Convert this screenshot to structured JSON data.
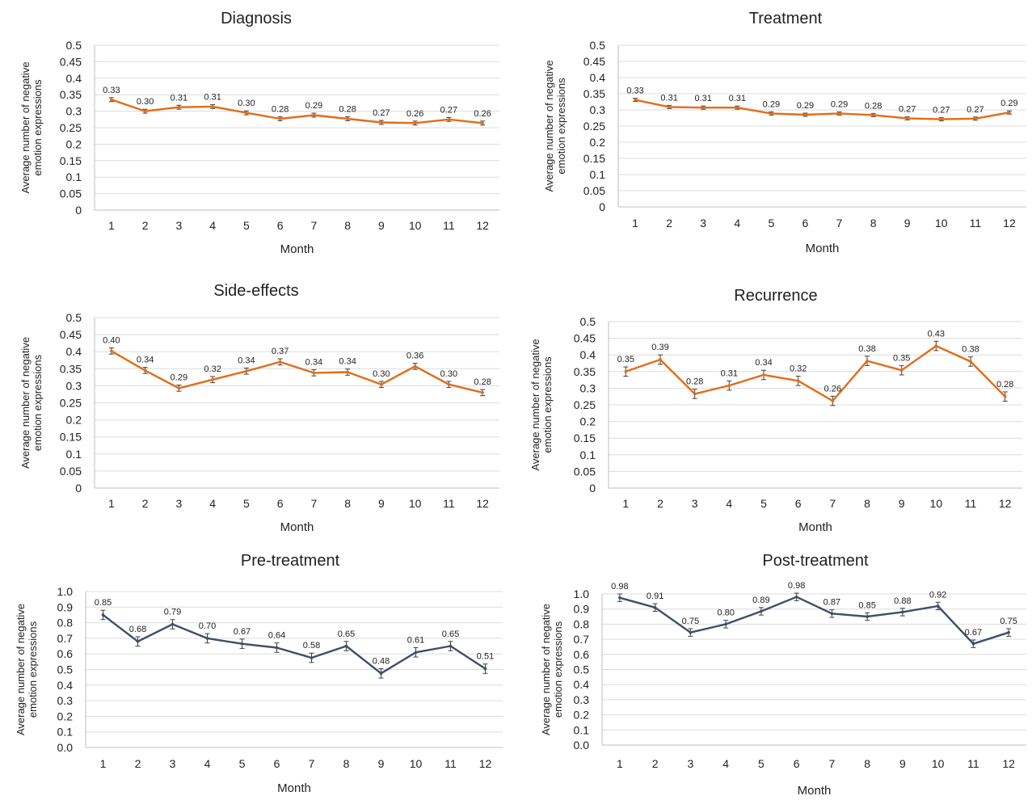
{
  "figure": {
    "y_axis_label_line1": "Average number of negative",
    "y_axis_label_line2": "emotion expressions",
    "x_axis_label": "Month"
  },
  "chart_data": [
    {
      "type": "line",
      "title": "Diagnosis",
      "xlabel": "Month",
      "ylabel": "Average number of negative emotion expressions",
      "x": [
        1,
        2,
        3,
        4,
        5,
        6,
        7,
        8,
        9,
        10,
        11,
        12
      ],
      "values": [
        0.335,
        0.3,
        0.312,
        0.314,
        0.295,
        0.277,
        0.288,
        0.277,
        0.266,
        0.264,
        0.275,
        0.264
      ],
      "data_labels": [
        "0.33",
        "0.30",
        "0.31",
        "0.31",
        "0.30",
        "0.28",
        "0.29",
        "0.28",
        "0.27",
        "0.26",
        "0.27",
        "0.26"
      ],
      "error": 0.006,
      "ylim": [
        0,
        0.5
      ],
      "yticks": [
        "0",
        "0.05",
        "0.1",
        "0.15",
        "0.2",
        "0.25",
        "0.3",
        "0.35",
        "0.4",
        "0.45",
        "0.5"
      ],
      "color": "#e36c17",
      "grid": true
    },
    {
      "type": "line",
      "title": "Treatment",
      "xlabel": "Month",
      "ylabel": "Average number of negative emotion expressions",
      "x": [
        1,
        2,
        3,
        4,
        5,
        6,
        7,
        8,
        9,
        10,
        11,
        12
      ],
      "values": [
        0.331,
        0.309,
        0.307,
        0.307,
        0.289,
        0.285,
        0.289,
        0.284,
        0.274,
        0.271,
        0.273,
        0.292
      ],
      "data_labels": [
        "0.33",
        "0.31",
        "0.31",
        "0.31",
        "0.29",
        "0.29",
        "0.29",
        "0.28",
        "0.27",
        "0.27",
        "0.27",
        "0.29"
      ],
      "error": 0.005,
      "ylim": [
        0,
        0.5
      ],
      "yticks": [
        "0",
        "0.05",
        "0.1",
        "0.15",
        "0.2",
        "0.25",
        "0.3",
        "0.35",
        "0.4",
        "0.45",
        "0.5"
      ],
      "color": "#e36c17",
      "grid": true
    },
    {
      "type": "line",
      "title": "Side-effects",
      "xlabel": "Month",
      "ylabel": "Average number of negative emotion expressions",
      "x": [
        1,
        2,
        3,
        4,
        5,
        6,
        7,
        8,
        9,
        10,
        11,
        12
      ],
      "values": [
        0.402,
        0.345,
        0.293,
        0.318,
        0.343,
        0.37,
        0.338,
        0.34,
        0.304,
        0.357,
        0.304,
        0.28
      ],
      "data_labels": [
        "0.40",
        "0.34",
        "0.29",
        "0.32",
        "0.34",
        "0.37",
        "0.34",
        "0.34",
        "0.30",
        "0.36",
        "0.30",
        "0.28"
      ],
      "error": 0.009,
      "ylim": [
        0,
        0.5
      ],
      "yticks": [
        "0",
        "0.05",
        "0.1",
        "0.15",
        "0.2",
        "0.25",
        "0.3",
        "0.35",
        "0.4",
        "0.45",
        "0.5"
      ],
      "color": "#e36c17",
      "grid": true
    },
    {
      "type": "line",
      "title": "Recurrence",
      "xlabel": "Month",
      "ylabel": "Average number of negative emotion expressions",
      "x": [
        1,
        2,
        3,
        4,
        5,
        6,
        7,
        8,
        9,
        10,
        11,
        12
      ],
      "values": [
        0.35,
        0.386,
        0.283,
        0.308,
        0.34,
        0.322,
        0.262,
        0.382,
        0.354,
        0.427,
        0.38,
        0.275
      ],
      "data_labels": [
        "0.35",
        "0.39",
        "0.28",
        "0.31",
        "0.34",
        "0.32",
        "0.26",
        "0.38",
        "0.35",
        "0.43",
        "0.38",
        "0.28"
      ],
      "error": 0.014,
      "ylim": [
        0,
        0.5
      ],
      "yticks": [
        "0",
        "0.05",
        "0.1",
        "0.15",
        "0.2",
        "0.25",
        "0.3",
        "0.35",
        "0.4",
        "0.45",
        "0.5"
      ],
      "color": "#e36c17",
      "grid": true
    },
    {
      "type": "line",
      "title": "Pre-treatment",
      "xlabel": "Month",
      "ylabel": "Average number of negative emotion expressions",
      "x": [
        1,
        2,
        3,
        4,
        5,
        6,
        7,
        8,
        9,
        10,
        11,
        12
      ],
      "values": [
        0.85,
        0.68,
        0.79,
        0.7,
        0.665,
        0.64,
        0.575,
        0.65,
        0.475,
        0.61,
        0.65,
        0.505
      ],
      "data_labels": [
        "0.85",
        "0.68",
        "0.79",
        "0.70",
        "0.67",
        "0.64",
        "0.58",
        "0.65",
        "0.48",
        "0.61",
        "0.65",
        "0.51"
      ],
      "error": 0.03,
      "ylim": [
        0,
        1.0
      ],
      "yticks": [
        "0.0",
        "0.1",
        "0.2",
        "0.3",
        "0.4",
        "0.5",
        "0.6",
        "0.7",
        "0.8",
        "0.9",
        "1.0"
      ],
      "color": "#3d4f6b",
      "grid": true
    },
    {
      "type": "line",
      "title": "Post-treatment",
      "xlabel": "Month",
      "ylabel": "Average number of negative emotion expressions",
      "x": [
        1,
        2,
        3,
        4,
        5,
        6,
        7,
        8,
        9,
        10,
        11,
        12
      ],
      "values": [
        0.975,
        0.91,
        0.745,
        0.8,
        0.885,
        0.98,
        0.87,
        0.85,
        0.88,
        0.92,
        0.67,
        0.745
      ],
      "data_labels": [
        "0.98",
        "0.91",
        "0.75",
        "0.80",
        "0.89",
        "0.98",
        "0.87",
        "0.85",
        "0.88",
        "0.92",
        "0.67",
        "0.75"
      ],
      "error": 0.025,
      "ylim": [
        0,
        1.0
      ],
      "yticks": [
        "0.0",
        "0.1",
        "0.2",
        "0.3",
        "0.4",
        "0.5",
        "0.6",
        "0.7",
        "0.8",
        "0.9",
        "1.0"
      ],
      "color": "#3d4f6b",
      "grid": true
    }
  ]
}
